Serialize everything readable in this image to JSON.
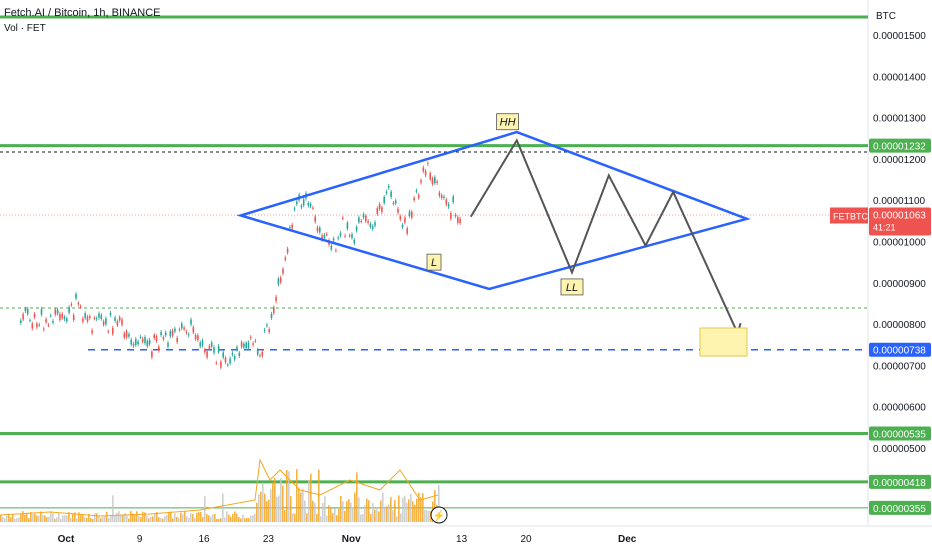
{
  "header": {
    "title": "Fetch.AI / Bitcoin, 1h, BINANCE",
    "volume_label": "Vol · FET"
  },
  "chart_data": {
    "type": "line",
    "title": "Fetch.AI / Bitcoin, 1h, BINANCE",
    "currency": "BTC",
    "symbol": "FETBTC",
    "countdown": "41:21",
    "ylim": [
      2.95e-06,
      1.59e-05
    ],
    "y_ticks": [
      "0.00001500",
      "0.00001400",
      "0.00001300",
      "0.00001200",
      "0.00001100",
      "0.00001000",
      "0.00000900",
      "0.00000800",
      "0.00000700",
      "0.00000600",
      "0.00000500"
    ],
    "x_ticks": [
      "Oct",
      "9",
      "16",
      "23",
      "Nov",
      "13",
      "20",
      "Dec"
    ],
    "last_price": "0.00001063",
    "price_series": [
      {
        "x": "Sep 26",
        "y": 8.18e-06
      },
      {
        "x": "Sep 27",
        "y": 8.15e-06
      },
      {
        "x": "Sep 28",
        "y": 8.05e-06
      },
      {
        "x": "Sep 29",
        "y": 8.12e-06
      },
      {
        "x": "Sep 30",
        "y": 8.2e-06
      },
      {
        "x": "Oct 1",
        "y": 8.22e-06
      },
      {
        "x": "Oct 2",
        "y": 8.45e-06
      },
      {
        "x": "Oct 3",
        "y": 8.18e-06
      },
      {
        "x": "Oct 4",
        "y": 8e-06
      },
      {
        "x": "Oct 5",
        "y": 7.96e-06
      },
      {
        "x": "Oct 6",
        "y": 8.08e-06
      },
      {
        "x": "Oct 7",
        "y": 7.95e-06
      },
      {
        "x": "Oct 8",
        "y": 7.7e-06
      },
      {
        "x": "Oct 9",
        "y": 7.52e-06
      },
      {
        "x": "Oct 10",
        "y": 7.48e-06
      },
      {
        "x": "Oct 11",
        "y": 7.65e-06
      },
      {
        "x": "Oct 12",
        "y": 7.55e-06
      },
      {
        "x": "Oct 13",
        "y": 7.78e-06
      },
      {
        "x": "Oct 14",
        "y": 7.98e-06
      },
      {
        "x": "Oct 15",
        "y": 7.75e-06
      },
      {
        "x": "Oct 16",
        "y": 7.52e-06
      },
      {
        "x": "Oct 17",
        "y": 7.28e-06
      },
      {
        "x": "Oct 18",
        "y": 7.05e-06
      },
      {
        "x": "Oct 19",
        "y": 7.18e-06
      },
      {
        "x": "Oct 20",
        "y": 7.45e-06
      },
      {
        "x": "Oct 21",
        "y": 7.58e-06
      },
      {
        "x": "Oct 22",
        "y": 7.35e-06
      },
      {
        "x": "Oct 23",
        "y": 8.05e-06
      },
      {
        "x": "Oct 24",
        "y": 8.95e-06
      },
      {
        "x": "Oct 25",
        "y": 1e-05
      },
      {
        "x": "Oct 26",
        "y": 1.08e-05
      },
      {
        "x": "Oct 27",
        "y": 1.105e-05
      },
      {
        "x": "Oct 28",
        "y": 1.06e-05
      },
      {
        "x": "Oct 29",
        "y": 1.02e-05
      },
      {
        "x": "Oct 30",
        "y": 9.85e-06
      },
      {
        "x": "Oct 31",
        "y": 1.04e-05
      },
      {
        "x": "Nov 1",
        "y": 1e-05
      },
      {
        "x": "Nov 2",
        "y": 1.06e-05
      },
      {
        "x": "Nov 3",
        "y": 1.03e-05
      },
      {
        "x": "Nov 4",
        "y": 1.085e-05
      },
      {
        "x": "Nov 5",
        "y": 1.12e-05
      },
      {
        "x": "Nov 6",
        "y": 1.06e-05
      },
      {
        "x": "Nov 7",
        "y": 1.04e-05
      },
      {
        "x": "Nov 8",
        "y": 1.11e-05
      },
      {
        "x": "Nov 9",
        "y": 1.18e-05
      },
      {
        "x": "Nov 10",
        "y": 1.16e-05
      },
      {
        "x": "Nov 11",
        "y": 1.1e-05
      },
      {
        "x": "Nov 12",
        "y": 1.08e-05
      },
      {
        "x": "Nov 13",
        "y": 1.063e-05
      }
    ],
    "horizontal_levels": [
      {
        "value": 1.232e-05,
        "label": "0.00001232",
        "color": "#4caf50",
        "style": "solid"
      },
      {
        "value": 7.38e-06,
        "label": "0.00000738",
        "color": "#2962ff",
        "style": "dashed"
      },
      {
        "value": 5.35e-06,
        "label": "0.00000535",
        "color": "#4caf50",
        "style": "solid"
      },
      {
        "value": 4.18e-06,
        "label": "0.00000418",
        "color": "#4caf50",
        "style": "solid"
      },
      {
        "value": 3.55e-06,
        "label": "0.00000355",
        "color": "#4caf50",
        "style": "thin"
      }
    ],
    "diamond_pattern": {
      "left": {
        "x": "Oct 20",
        "y": 1.063e-05
      },
      "top": {
        "x": "Nov 19",
        "y": 1.265e-05
      },
      "right": {
        "x": "Dec 14",
        "y": 1.055e-05
      },
      "bottom": {
        "x": "Nov 16",
        "y": 8.85e-06
      },
      "color": "#2962ff"
    },
    "projection_path": [
      {
        "x": "Nov 14",
        "y": 1.06e-05
      },
      {
        "x": "Nov 19",
        "y": 1.245e-05
      },
      {
        "x": "Nov 25",
        "y": 9.25e-06
      },
      {
        "x": "Nov 29",
        "y": 1.16e-05
      },
      {
        "x": "Dec 3",
        "y": 9.9e-06
      },
      {
        "x": "Dec 6",
        "y": 1.12e-05
      },
      {
        "x": "Dec 13",
        "y": 7.78e-06
      }
    ],
    "annotations": [
      "HH",
      "L",
      "LL"
    ],
    "volume_last": "Vol"
  },
  "colors": {
    "up": "#26a69a",
    "down": "#ef5350",
    "support": "#4caf50",
    "pattern": "#2962ff",
    "projection": "#555555",
    "target_box": "#fff3b0",
    "volume": "#f5a623"
  }
}
